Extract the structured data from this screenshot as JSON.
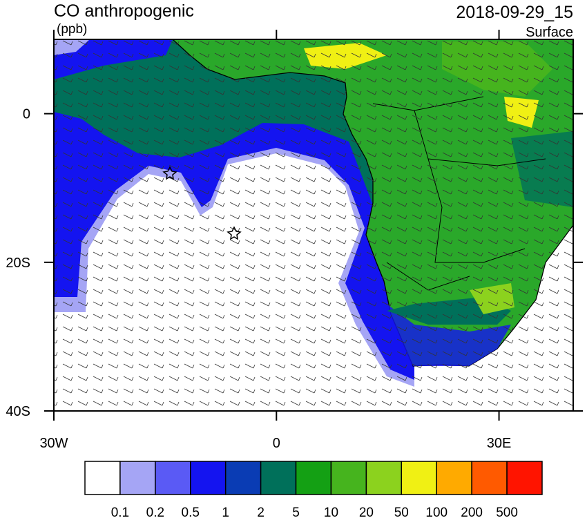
{
  "header": {
    "title": "CO anthropogenic",
    "units": "(ppb)",
    "datetime": "2018-09-29_15",
    "level": "Surface"
  },
  "map": {
    "lonlim": [
      -30,
      40
    ],
    "latlim": [
      -40,
      10
    ],
    "lon_ticks": [
      {
        "value": -30,
        "label": "30W"
      },
      0,
      {
        "value": 30,
        "label": "30E"
      }
    ],
    "lat_ticks": [
      0,
      {
        "value": -20,
        "label": "20S"
      },
      {
        "value": -40,
        "label": "40S"
      }
    ]
  },
  "colorbar": {
    "colors": [
      "#ffffff",
      "#a5a5f5",
      "#5a5af5",
      "#1414f0",
      "#0a3cb4",
      "#00705a",
      "#14a014",
      "#46b41e",
      "#8cd21e",
      "#f0f014",
      "#ffaa00",
      "#ff5a00",
      "#ff1400"
    ],
    "levels": [
      0.1,
      0.2,
      0.5,
      1,
      2,
      5,
      10,
      20,
      50,
      100,
      200,
      500
    ]
  }
}
